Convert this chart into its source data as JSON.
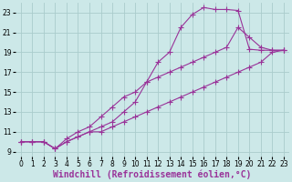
{
  "background_color": "#cce8e8",
  "grid_color": "#aacccc",
  "line_color": "#993399",
  "marker": "+",
  "markersize": 4,
  "linewidth": 0.8,
  "xlim": [
    -0.5,
    23.5
  ],
  "ylim": [
    8.5,
    24
  ],
  "xticks": [
    0,
    1,
    2,
    3,
    4,
    5,
    6,
    7,
    8,
    9,
    10,
    11,
    12,
    13,
    14,
    15,
    16,
    17,
    18,
    19,
    20,
    21,
    22,
    23
  ],
  "yticks": [
    9,
    11,
    13,
    15,
    17,
    19,
    21,
    23
  ],
  "xlabel": "Windchill (Refroidissement éolien,°C)",
  "xlabel_fontsize": 7,
  "tick_fontsize": 5.5,
  "series": [
    {
      "x": [
        0,
        1,
        2,
        3,
        4,
        5,
        6,
        7,
        8,
        9,
        10,
        11,
        12,
        13,
        14,
        15,
        16,
        17,
        18,
        19,
        20,
        21,
        22,
        23
      ],
      "y": [
        10,
        10,
        10,
        9.3,
        10,
        10.5,
        11,
        11.5,
        12,
        13,
        14,
        16,
        18,
        19,
        21.5,
        22.8,
        23.5,
        23.3,
        23.3,
        23.2,
        19.3,
        19.2,
        19.2,
        19.2
      ]
    },
    {
      "x": [
        0,
        1,
        2,
        3,
        4,
        5,
        6,
        7,
        8,
        9,
        10,
        11,
        12,
        13,
        14,
        15,
        16,
        17,
        18,
        19,
        20,
        21,
        22,
        23
      ],
      "y": [
        10,
        10,
        10,
        9.3,
        10.3,
        11,
        11.5,
        12.5,
        13.5,
        14.5,
        15,
        16,
        16.5,
        17,
        17.5,
        18,
        18.5,
        19,
        19.5,
        21.5,
        20.5,
        19.5,
        19.2,
        19.2
      ]
    },
    {
      "x": [
        0,
        1,
        2,
        3,
        4,
        5,
        6,
        7,
        8,
        9,
        10,
        11,
        12,
        13,
        14,
        15,
        16,
        17,
        18,
        19,
        20,
        21,
        22,
        23
      ],
      "y": [
        10,
        10,
        10,
        9.3,
        10,
        10.5,
        11,
        11,
        11.5,
        12,
        12.5,
        13,
        13.5,
        14,
        14.5,
        15,
        15.5,
        16,
        16.5,
        17,
        17.5,
        18,
        19,
        19.2
      ]
    }
  ]
}
